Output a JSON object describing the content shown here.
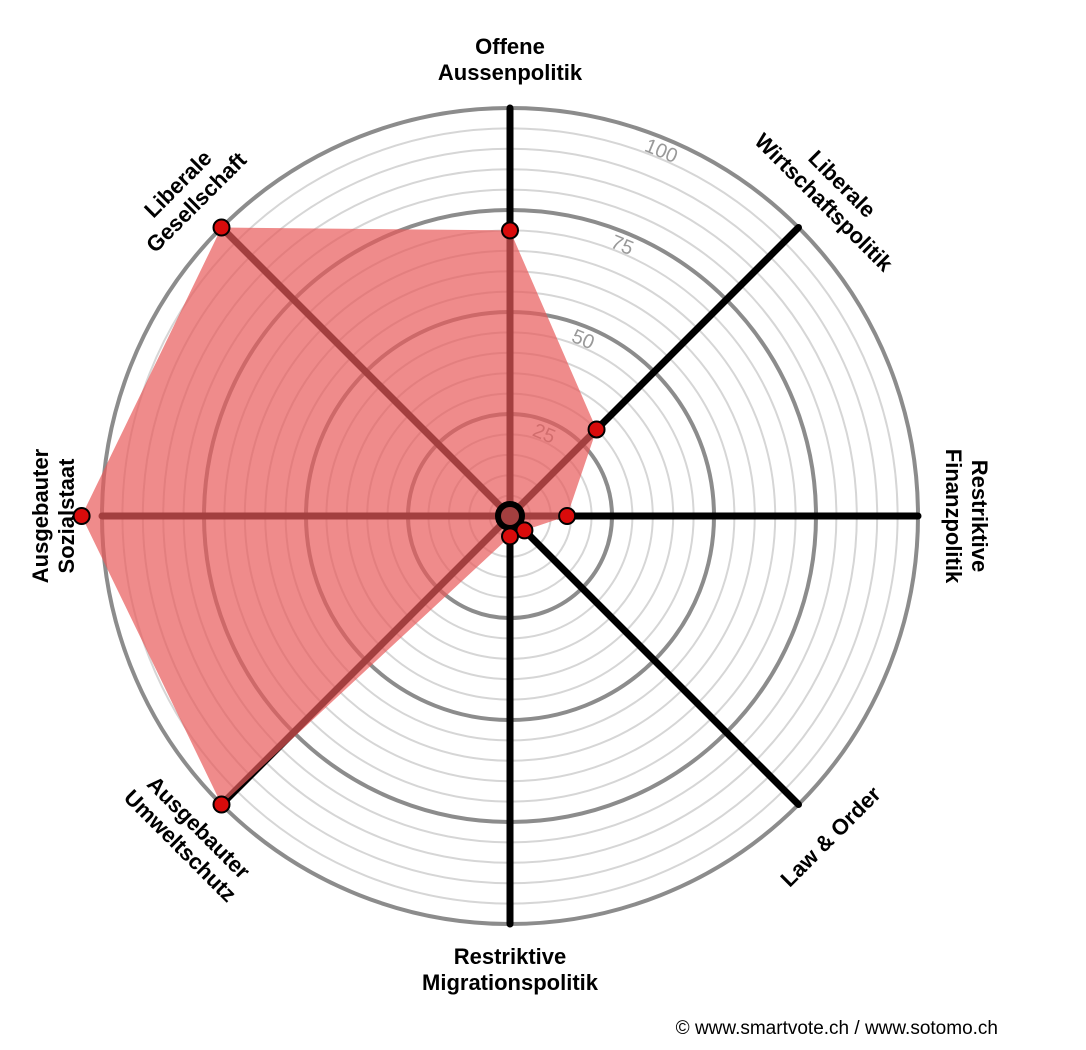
{
  "chart_data": {
    "type": "radar",
    "axes": [
      {
        "lines": [
          "Offene",
          "Aussenpolitik"
        ],
        "value": 70
      },
      {
        "lines": [
          "Liberale",
          "Wirtschaftspolitik"
        ],
        "value": 30
      },
      {
        "lines": [
          "Restriktive",
          "Finanzpolitik"
        ],
        "value": 14
      },
      {
        "lines": [
          "Law & Order"
        ],
        "value": 5
      },
      {
        "lines": [
          "Restriktive",
          "Migrationspolitik"
        ],
        "value": 5
      },
      {
        "lines": [
          "Ausgebauter",
          "Umweltschutz"
        ],
        "value": 100
      },
      {
        "lines": [
          "Ausgebauter",
          "Sozialstaat"
        ],
        "value": 105
      },
      {
        "lines": [
          "Liberale",
          "Gesellschaft"
        ],
        "value": 100
      }
    ],
    "ticks": [
      "25",
      "50",
      "75",
      "100"
    ],
    "range": [
      0,
      100
    ],
    "fill_color": "#e85a5a",
    "point_color": "#d90b0b"
  },
  "footer": {
    "copyright": "© www.smartvote.ch / www.sotomo.ch"
  }
}
